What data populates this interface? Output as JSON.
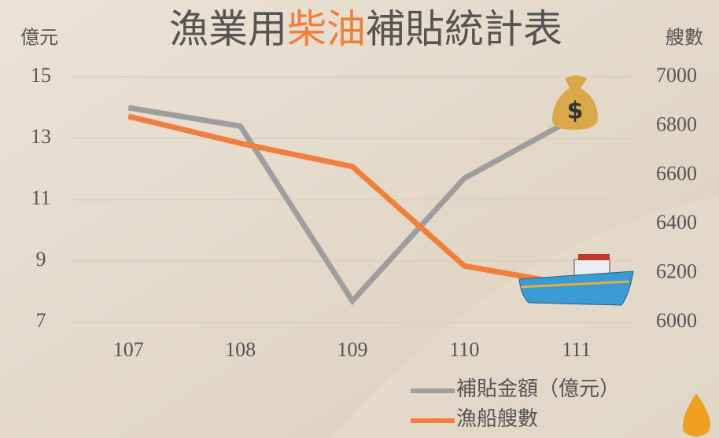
{
  "chart_data": {
    "type": "line",
    "title": [
      "漁業用",
      "柴油",
      "補貼統計表"
    ],
    "y_label": "億元",
    "y2_label": "艘數",
    "categories": [
      "107",
      "108",
      "109",
      "110",
      "111"
    ],
    "series": [
      {
        "name": "補貼金額（億元）",
        "color": "#9e9e9e",
        "values": [
          14.0,
          13.4,
          7.7,
          11.7,
          13.7
        ]
      },
      {
        "name": "漁船艘數",
        "color": "#f07f3c",
        "axis": "y2",
        "values": [
          6840,
          6730,
          6635,
          6230,
          6150
        ]
      }
    ],
    "ylim": [
      7,
      15
    ],
    "yticks": [
      7,
      9,
      11,
      13,
      15
    ],
    "y2lim": [
      6000,
      7000
    ],
    "y2ticks": [
      6000,
      6200,
      6400,
      6600,
      6800,
      7000
    ],
    "grid": true
  }
}
